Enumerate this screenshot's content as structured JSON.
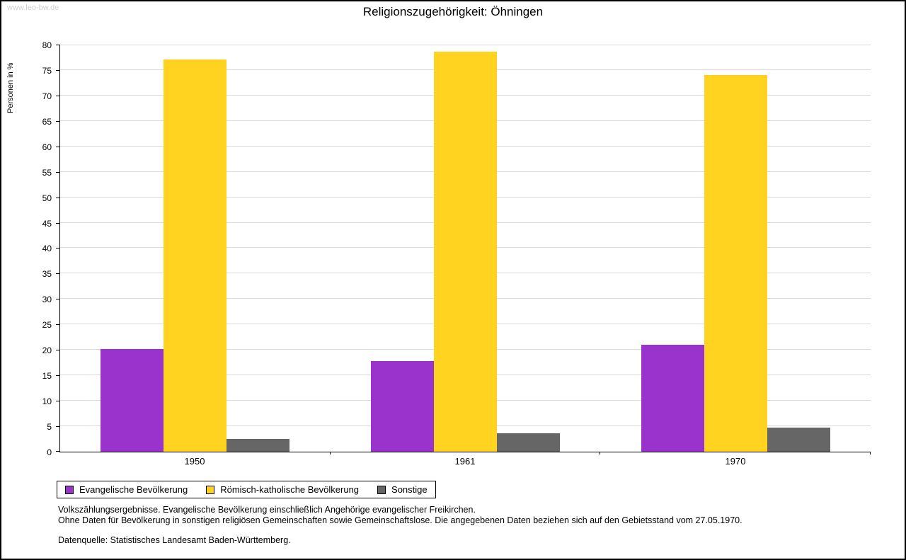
{
  "watermark": "www.leo-bw.de",
  "chart_data": {
    "type": "bar",
    "title": "Religionszugehörigkeit: Öhningen",
    "ylabel": "Personen in %",
    "xlabel": "",
    "ylim": [
      0,
      80
    ],
    "ytick_step": 5,
    "grid": true,
    "legend_position": "bottom-left",
    "categories": [
      "1950",
      "1961",
      "1970"
    ],
    "series": [
      {
        "name": "Evangelische Bevölkerung",
        "color": "#9933CC",
        "values": [
          20.2,
          17.8,
          21.1
        ]
      },
      {
        "name": "Römisch-katholische Bevölkerung",
        "color": "#FFD320",
        "values": [
          77.2,
          78.7,
          74.1
        ]
      },
      {
        "name": "Sonstige",
        "color": "#666666",
        "values": [
          2.5,
          3.6,
          4.8
        ]
      }
    ]
  },
  "footnotes": {
    "line1": "Volkszählungsergebnisse. Evangelische Bevölkerung einschließlich Angehörige evangelischer Freikirchen.",
    "line2": "Ohne Daten für Bevölkerung in sonstigen religiösen Gemeinschaften sowie Gemeinschaftslose. Die angegebenen Daten beziehen sich auf den Gebietsstand vom 27.05.1970.",
    "source": "Datenquelle: Statistisches Landesamt Baden-Württemberg."
  }
}
